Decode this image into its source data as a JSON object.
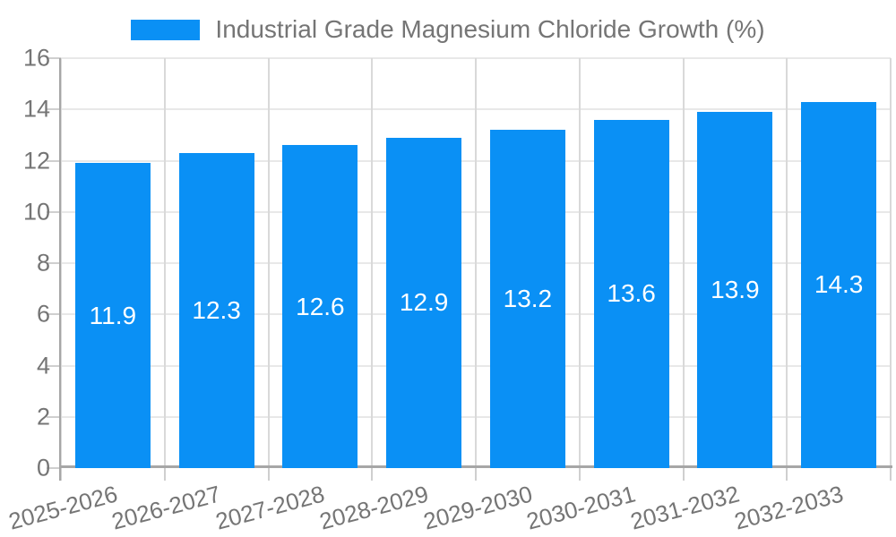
{
  "chart_data": {
    "type": "bar",
    "title": "Industrial Grade Magnesium Chloride Growth (%)",
    "categories": [
      "2025-2026",
      "2026-2027",
      "2027-2028",
      "2028-2029",
      "2029-2030",
      "2030-2031",
      "2031-2032",
      "2032-2033"
    ],
    "values": [
      11.9,
      12.3,
      12.6,
      12.9,
      13.2,
      13.6,
      13.9,
      14.3
    ],
    "value_labels": [
      "11.9",
      "12.3",
      "12.6",
      "12.9",
      "13.2",
      "13.6",
      "13.9",
      "14.3"
    ],
    "ytick_labels": [
      "0",
      "2",
      "4",
      "6",
      "8",
      "10",
      "12",
      "14",
      "16"
    ],
    "xlabel": "",
    "ylabel": "",
    "ylim": [
      0,
      16
    ],
    "ytick_step": 2,
    "grid": true,
    "legend_position": "top",
    "colors": {
      "bar": "#0a90f5",
      "bar_value_text": "#ffffff",
      "axis_line": "#a6a6a6",
      "gridline_h": "#e8e8e8",
      "gridline_v": "#d9d9d9",
      "tick_mark": "#cfcfcf",
      "tick_text": "#757575",
      "legend_text": "#757575",
      "background": "#ffffff"
    }
  }
}
